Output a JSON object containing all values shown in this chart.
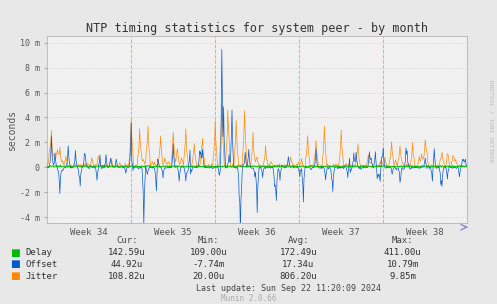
{
  "title": "NTP timing statistics for system peer - by month",
  "ylabel": "seconds",
  "right_label": "RRDTOOL / TOBI OETIKER",
  "bg_color": "#e8e8e8",
  "plot_bg_color": "#f0f0f0",
  "grid_color_h": "#cccccc",
  "grid_color_v": "#ffaaaa",
  "ylim": [
    -4.5,
    10.5
  ],
  "yticks": [
    -4,
    -2,
    0,
    2,
    4,
    6,
    8,
    10
  ],
  "ytick_labels": [
    "-4 m",
    "-2 m",
    "0",
    "2 m",
    "4 m",
    "6 m",
    "8 m",
    "10 m"
  ],
  "xtick_labels": [
    "Week 34",
    "Week 35",
    "Week 36",
    "Week 37",
    "Week 38"
  ],
  "delay_color": "#00bb00",
  "offset_color": "#0055cc",
  "jitter_color": "#ff8800",
  "footer_text": "Last update: Sun Sep 22 11:20:09 2024",
  "munin_text": "Munin 2.0.66",
  "cur_delay": "142.59u",
  "cur_offset": "44.92u",
  "cur_jitter": "108.82u",
  "min_delay": "109.00u",
  "min_offset": "-7.74m",
  "min_jitter": "20.00u",
  "avg_delay": "172.49u",
  "avg_offset": "17.34u",
  "avg_jitter": "806.20u",
  "max_delay": "411.00u",
  "max_offset": "10.79m",
  "max_jitter": "9.85m",
  "num_points": 700
}
